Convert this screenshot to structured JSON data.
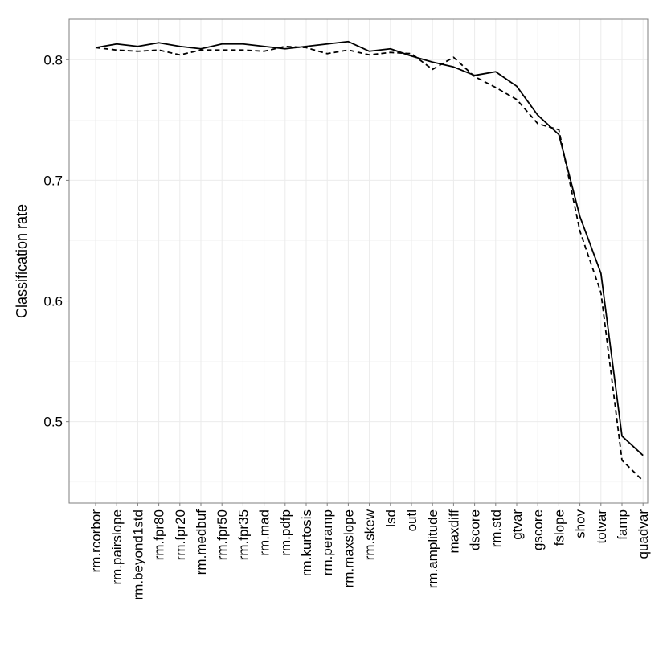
{
  "chart_data": {
    "type": "line",
    "title": "",
    "xlabel": "",
    "ylabel": "Classification rate",
    "ylim": [
      0.4325,
      0.8335
    ],
    "yticks": [
      "0.5",
      "0.6",
      "0.7",
      "0.8"
    ],
    "grid": true,
    "legend": "none",
    "categories": [
      "rm.rcorbor",
      "rm.pairslope",
      "rm.beyond1std",
      "rm.fpr80",
      "rm.fpr20",
      "rm.medbuf",
      "rm.fpr50",
      "rm.fpr35",
      "rm.mad",
      "rm.pdfp",
      "rm.kurtosis",
      "rm.peramp",
      "rm.maxslope",
      "rm.skew",
      "lsd",
      "outl",
      "rm.amplitude",
      "maxdiff",
      "dscore",
      "rm.std",
      "gtvar",
      "gscore",
      "fslope",
      "shov",
      "totvar",
      "famp",
      "quadvar"
    ],
    "series": [
      {
        "style": "solid",
        "values": [
          0.81,
          0.813,
          0.811,
          0.814,
          0.811,
          0.809,
          0.813,
          0.813,
          0.811,
          0.809,
          0.811,
          0.813,
          0.815,
          0.807,
          0.809,
          0.803,
          0.798,
          0.794,
          0.787,
          0.79,
          0.778,
          0.754,
          0.738,
          0.67,
          0.623,
          0.488,
          0.472
        ]
      },
      {
        "style": "dashed",
        "values": [
          0.81,
          0.808,
          0.807,
          0.808,
          0.804,
          0.808,
          0.808,
          0.808,
          0.807,
          0.811,
          0.81,
          0.805,
          0.808,
          0.804,
          0.806,
          0.805,
          0.792,
          0.802,
          0.786,
          0.777,
          0.767,
          0.747,
          0.742,
          0.658,
          0.607,
          0.468,
          0.451
        ]
      }
    ],
    "colors": {
      "line": "#000000",
      "panel": "#ffffff",
      "grid_major": "#ebebeb",
      "grid_minor": "#f5f5f5",
      "border": "#7f7f7f"
    }
  }
}
